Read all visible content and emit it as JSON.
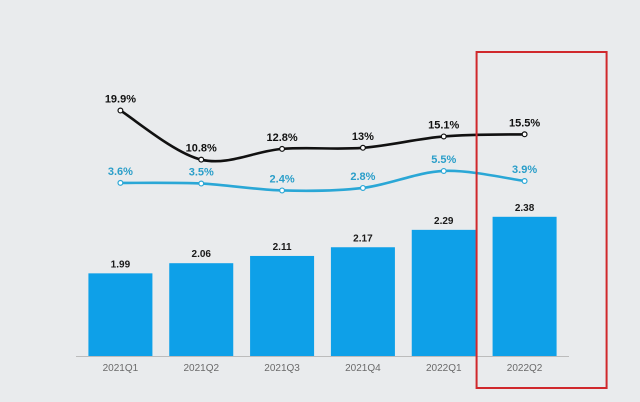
{
  "chart_data": {
    "type": "bar",
    "categories": [
      "2021Q1",
      "2021Q2",
      "2021Q3",
      "2021Q4",
      "2022Q1",
      "2022Q2"
    ],
    "series": [
      {
        "name": "bar-values",
        "type": "bar",
        "values": [
          1.99,
          2.06,
          2.11,
          2.17,
          2.29,
          2.38
        ],
        "color": "#0ea0e8"
      },
      {
        "name": "black-line",
        "type": "line",
        "values": [
          19.9,
          10.8,
          12.8,
          13,
          15.1,
          15.5
        ],
        "labels": [
          "19.9%",
          "10.8%",
          "12.8%",
          "13%",
          "15.1%",
          "15.5%"
        ],
        "color": "#111111"
      },
      {
        "name": "blue-line",
        "type": "line",
        "values": [
          3.6,
          3.5,
          2.4,
          2.8,
          5.5,
          3.9
        ],
        "labels": [
          "3.6%",
          "3.5%",
          "2.4%",
          "2.8%",
          "5.5%",
          "3.9%"
        ],
        "color": "#2aa7d6"
      }
    ],
    "highlight": {
      "category": "2022Q2",
      "color": "#d0282c"
    },
    "title": "",
    "xlabel": "",
    "ylabel": ""
  }
}
